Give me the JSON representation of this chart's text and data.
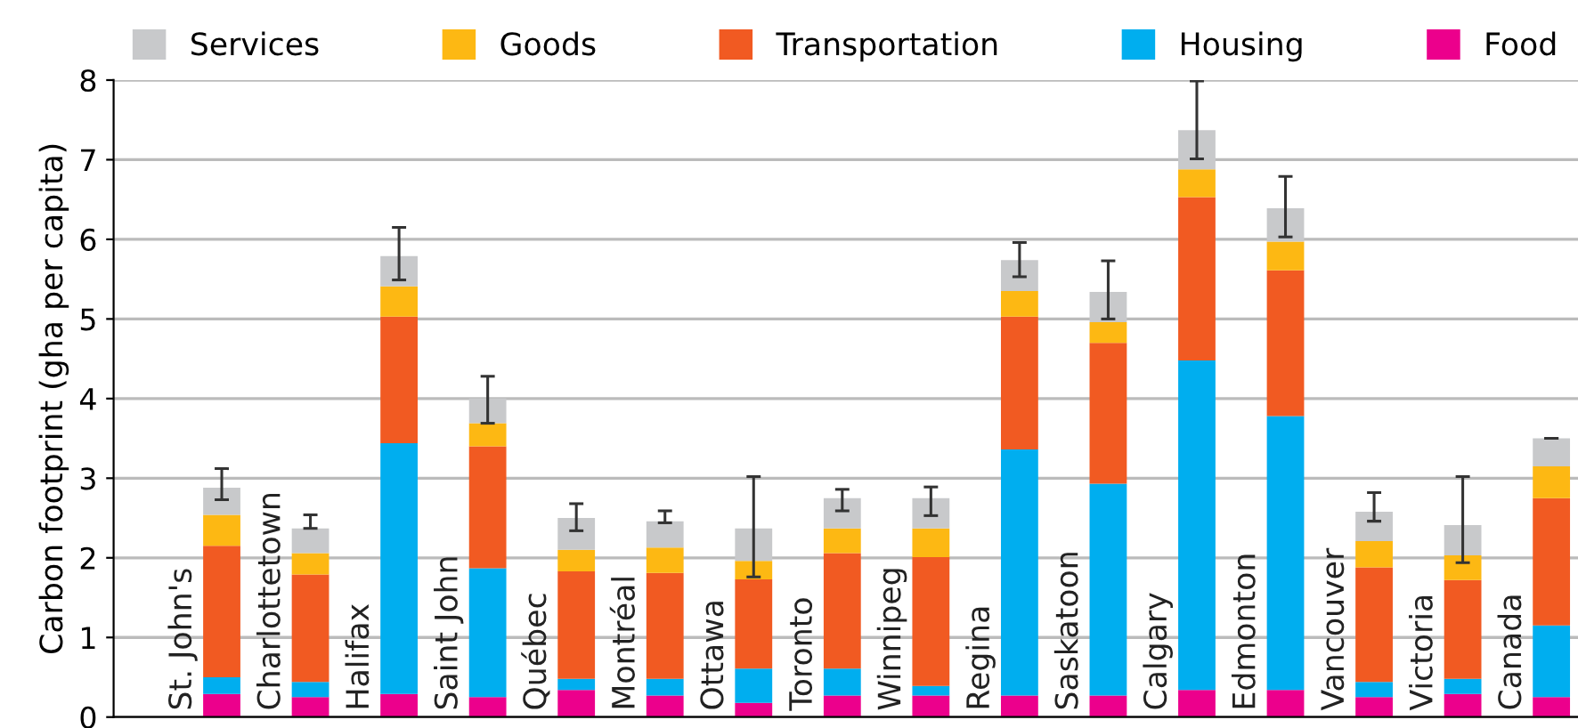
{
  "chart_data": {
    "type": "bar",
    "stacked": true,
    "ylabel": "Carbon footprint (gha per capita)",
    "categories": [
      "St. John's",
      "Charlottetown",
      "Halifax",
      "Saint John",
      "Québec",
      "Montréal",
      "Ottawa",
      "Toronto",
      "Winnipeg",
      "Regina",
      "Saskatoon",
      "Calgary",
      "Edmonton",
      "Vancouver",
      "Victoria",
      "Canada"
    ],
    "series": [
      {
        "name": "Food",
        "color": "#ec008c",
        "values": [
          0.29,
          0.25,
          0.29,
          0.25,
          0.34,
          0.27,
          0.18,
          0.27,
          0.27,
          0.27,
          0.27,
          0.34,
          0.34,
          0.25,
          0.29,
          0.25
        ]
      },
      {
        "name": "Housing",
        "color": "#00aeef",
        "values": [
          0.21,
          0.19,
          3.15,
          1.62,
          0.14,
          0.21,
          0.43,
          0.34,
          0.12,
          3.09,
          2.66,
          4.14,
          3.44,
          0.19,
          0.19,
          0.9
        ]
      },
      {
        "name": "Transportation",
        "color": "#f15a22",
        "values": [
          1.65,
          1.35,
          1.59,
          1.53,
          1.35,
          1.33,
          1.12,
          1.45,
          1.62,
          1.67,
          1.77,
          2.05,
          1.83,
          1.44,
          1.24,
          1.6
        ]
      },
      {
        "name": "Goods",
        "color": "#fdb813",
        "values": [
          0.39,
          0.27,
          0.38,
          0.29,
          0.27,
          0.32,
          0.23,
          0.31,
          0.36,
          0.32,
          0.26,
          0.35,
          0.36,
          0.33,
          0.31,
          0.4
        ]
      },
      {
        "name": "Services",
        "color": "#c8c9cb",
        "values": [
          0.34,
          0.31,
          0.38,
          0.31,
          0.4,
          0.33,
          0.41,
          0.38,
          0.38,
          0.39,
          0.38,
          0.49,
          0.42,
          0.37,
          0.38,
          0.35
        ],
        "errors": [
          [
            2.73,
            3.12
          ],
          [
            2.37,
            2.54
          ],
          [
            5.49,
            6.15
          ],
          [
            3.69,
            4.28
          ],
          [
            2.34,
            2.68
          ],
          [
            2.44,
            2.59
          ],
          [
            1.76,
            3.02
          ],
          [
            2.59,
            2.86
          ],
          [
            2.53,
            2.89
          ],
          [
            5.53,
            5.96
          ],
          [
            5.0,
            5.73
          ],
          [
            7.01,
            7.99
          ],
          [
            6.03,
            6.79
          ],
          [
            2.46,
            2.82
          ],
          [
            1.94,
            3.02
          ],
          [
            3.5,
            3.5
          ]
        ]
      }
    ],
    "ylim": [
      0,
      8
    ],
    "yticks": [
      0,
      1,
      2,
      3,
      4,
      5,
      6,
      7,
      8
    ],
    "grid": "y",
    "legend": "top"
  }
}
